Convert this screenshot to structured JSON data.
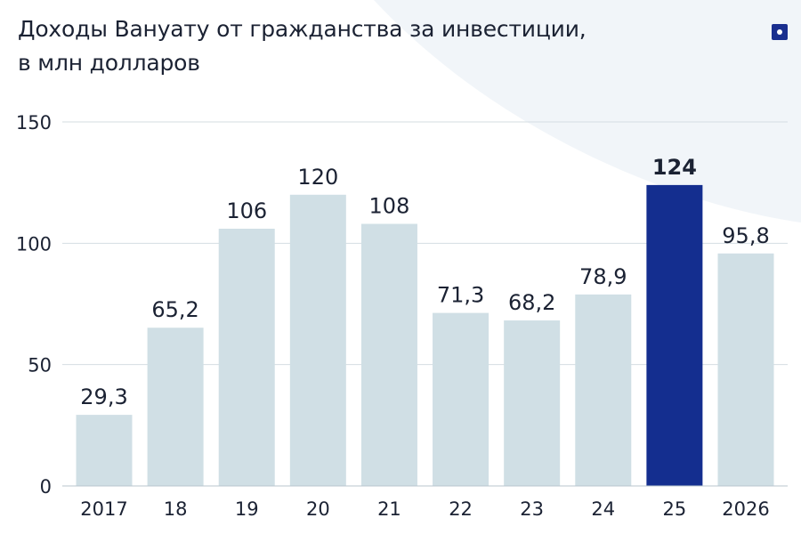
{
  "title_line1": "Доходы Вануату от гражданства за инвестиции,",
  "title_line2": "в млн долларов",
  "colors": {
    "bar": "#d0dfe5",
    "highlight": "#142e8f",
    "grid": "#d5dde2",
    "axis_text": "#1b2233"
  },
  "logo_icon": "square-dot-icon",
  "chart_data": {
    "type": "bar",
    "title": "Доходы Вануату от гражданства за инвестиции, в млн долларов",
    "xlabel": "",
    "ylabel": "",
    "ylim": [
      0,
      150
    ],
    "yticks": [
      "0",
      "50",
      "100",
      "150"
    ],
    "grid": true,
    "categories": [
      "2017",
      "18",
      "19",
      "20",
      "21",
      "22",
      "23",
      "24",
      "25",
      "2026"
    ],
    "values": [
      29.3,
      65.2,
      106,
      120,
      108,
      71.3,
      68.2,
      78.9,
      124,
      95.8
    ],
    "value_labels": [
      "29,3",
      "65,2",
      "106",
      "120",
      "108",
      "71,3",
      "68,2",
      "78,9",
      "124",
      "95,8"
    ],
    "highlight_category": "25"
  }
}
